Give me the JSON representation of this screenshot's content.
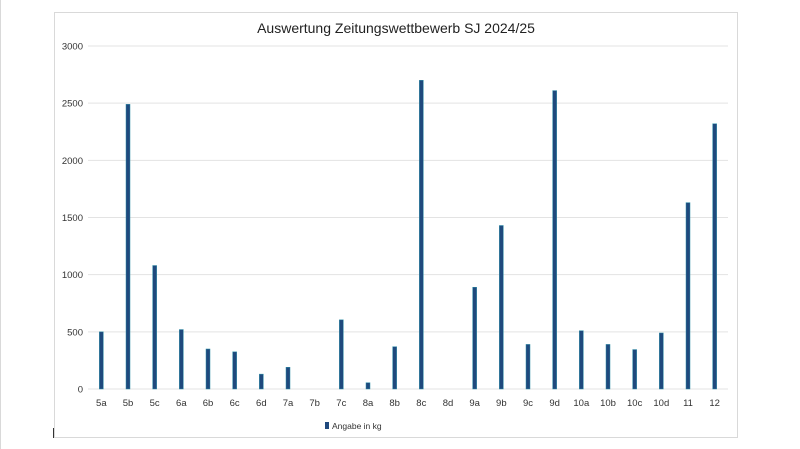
{
  "chart_data": {
    "type": "bar",
    "title": "Auswertung Zeitungswettbewerb SJ 2024/25",
    "xlabel": "",
    "ylabel": "",
    "ylim": [
      0,
      3000
    ],
    "yticks": [
      "0",
      "500",
      "1000",
      "1500",
      "2000",
      "2500",
      "3000"
    ],
    "grid": true,
    "legend_position": "bottom-left",
    "categories": [
      "5a",
      "5b",
      "5c",
      "6a",
      "6b",
      "6c",
      "6d",
      "7a",
      "7b",
      "7c",
      "8a",
      "8b",
      "8c",
      "8d",
      "9a",
      "9b",
      "9c",
      "9d",
      "10a",
      "10b",
      "10c",
      "10d",
      "11",
      "12"
    ],
    "series": [
      {
        "name": "Angabe in kg",
        "color": "#1f497d",
        "values": [
          500,
          2490,
          1080,
          520,
          350,
          325,
          130,
          190,
          0,
          605,
          55,
          370,
          2700,
          0,
          890,
          1430,
          390,
          2610,
          510,
          390,
          345,
          490,
          1630,
          2320
        ]
      }
    ]
  }
}
